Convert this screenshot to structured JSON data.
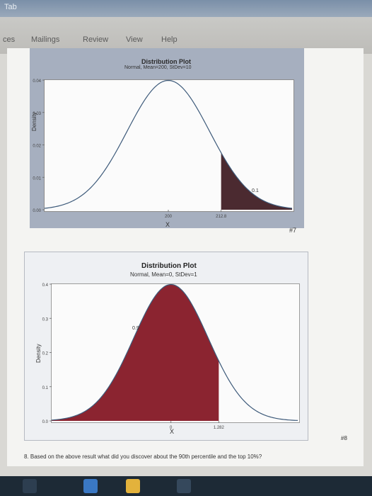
{
  "window": {
    "title_fragment": "Tab"
  },
  "ribbon": {
    "tabs": [
      "ces",
      "Mailings",
      "Review",
      "View",
      "Help"
    ]
  },
  "plot1": {
    "title": "Distribution Plot",
    "subtitle": "Normal, Mean=200, StDev=10",
    "ylabel": "Density",
    "xlabel": "X",
    "yticks": [
      "0.04",
      "0.03",
      "0.02",
      "0.01",
      "0.00"
    ],
    "xticks": [
      "200",
      "212.8"
    ],
    "area_label": "0.1",
    "shade_color": "#4b2a30"
  },
  "label7": "#7",
  "plot2": {
    "title": "Distribution Plot",
    "subtitle": "Normal, Mean=0, StDev=1",
    "ylabel": "Density",
    "xlabel": "X",
    "yticks": [
      "0.4",
      "0.3",
      "0.2",
      "0.1",
      "0.0"
    ],
    "xticks": [
      "0",
      "1.282"
    ],
    "area_label": "0.9",
    "shade_color": "#8b2430"
  },
  "label8": "#8",
  "question": "8. Based on the above result what did you discover about the 90th percentile and the top 10%?",
  "chart_data": [
    {
      "type": "area",
      "title": "Distribution Plot",
      "subtitle": "Normal, Mean=200, StDev=10",
      "xlabel": "X",
      "ylabel": "Density",
      "distribution": {
        "family": "normal",
        "mean": 200,
        "stdev": 10
      },
      "xlim": [
        170,
        230
      ],
      "ylim": [
        0,
        0.04
      ],
      "shaded_region": {
        "from": 212.8,
        "to": 230,
        "probability": 0.1
      }
    },
    {
      "type": "area",
      "title": "Distribution Plot",
      "subtitle": "Normal, Mean=0, StDev=1",
      "xlabel": "X",
      "ylabel": "Density",
      "distribution": {
        "family": "normal",
        "mean": 0,
        "stdev": 1
      },
      "xlim": [
        -3.2,
        3.4
      ],
      "ylim": [
        0,
        0.4
      ],
      "shaded_region": {
        "from": -3.2,
        "to": 1.282,
        "probability": 0.9
      }
    }
  ]
}
